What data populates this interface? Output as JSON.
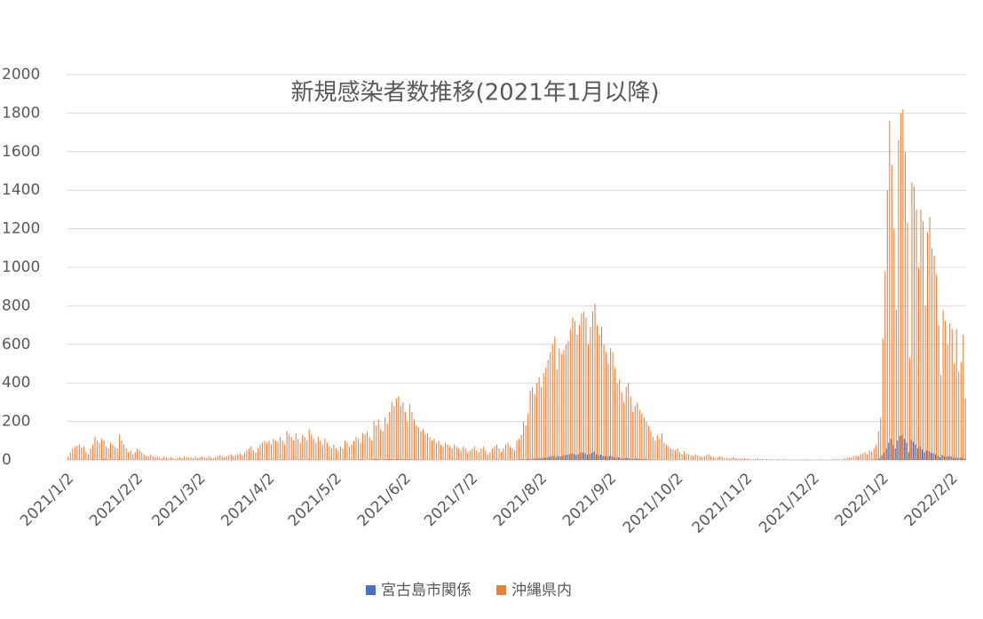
{
  "chart_data": {
    "type": "bar",
    "title": "新規感染者数推移(2021年1月以降)",
    "categories": [
      "2021/1/2",
      null,
      null,
      null,
      null,
      null,
      null,
      null,
      null,
      null,
      null,
      null,
      null,
      null,
      null,
      null,
      null,
      null,
      null,
      null,
      null,
      null,
      null,
      null,
      null,
      null,
      null,
      null,
      null,
      null,
      null,
      "2021/2/2",
      null,
      null,
      null,
      null,
      null,
      null,
      null,
      null,
      null,
      null,
      null,
      null,
      null,
      null,
      null,
      null,
      null,
      null,
      null,
      null,
      null,
      null,
      null,
      null,
      null,
      null,
      null,
      "2021/3/2",
      null,
      null,
      null,
      null,
      null,
      null,
      null,
      null,
      null,
      null,
      null,
      null,
      null,
      null,
      null,
      null,
      null,
      null,
      null,
      null,
      null,
      null,
      null,
      null,
      null,
      null,
      null,
      null,
      null,
      null,
      "2021/4/2",
      null,
      null,
      null,
      null,
      null,
      null,
      null,
      null,
      null,
      null,
      null,
      null,
      null,
      null,
      null,
      null,
      null,
      null,
      null,
      null,
      null,
      null,
      null,
      null,
      null,
      null,
      null,
      null,
      null,
      "2021/5/2",
      null,
      null,
      null,
      null,
      null,
      null,
      null,
      null,
      null,
      null,
      null,
      null,
      null,
      null,
      null,
      null,
      null,
      null,
      null,
      null,
      null,
      null,
      null,
      null,
      null,
      null,
      null,
      null,
      null,
      null,
      "2021/6/2",
      null,
      null,
      null,
      null,
      null,
      null,
      null,
      null,
      null,
      null,
      null,
      null,
      null,
      null,
      null,
      null,
      null,
      null,
      null,
      null,
      null,
      null,
      null,
      null,
      null,
      null,
      null,
      null,
      null,
      "2021/7/2",
      null,
      null,
      null,
      null,
      null,
      null,
      null,
      null,
      null,
      null,
      null,
      null,
      null,
      null,
      null,
      null,
      null,
      null,
      null,
      null,
      null,
      null,
      null,
      null,
      null,
      null,
      null,
      null,
      null,
      null,
      "2021/8/2",
      null,
      null,
      null,
      null,
      null,
      null,
      null,
      null,
      null,
      null,
      null,
      null,
      null,
      null,
      null,
      null,
      null,
      null,
      null,
      null,
      null,
      null,
      null,
      null,
      null,
      null,
      null,
      null,
      null,
      null,
      "2021/9/2",
      null,
      null,
      null,
      null,
      null,
      null,
      null,
      null,
      null,
      null,
      null,
      null,
      null,
      null,
      null,
      null,
      null,
      null,
      null,
      null,
      null,
      null,
      null,
      null,
      null,
      null,
      null,
      null,
      null,
      "2021/10/2",
      null,
      null,
      null,
      null,
      null,
      null,
      null,
      null,
      null,
      null,
      null,
      null,
      null,
      null,
      null,
      null,
      null,
      null,
      null,
      null,
      null,
      null,
      null,
      null,
      null,
      null,
      null,
      null,
      null,
      null,
      "2021/11/2",
      null,
      null,
      null,
      null,
      null,
      null,
      null,
      null,
      null,
      null,
      null,
      null,
      null,
      null,
      null,
      null,
      null,
      null,
      null,
      null,
      null,
      null,
      null,
      null,
      null,
      null,
      null,
      null,
      null,
      "2021/12/2",
      null,
      null,
      null,
      null,
      null,
      null,
      null,
      null,
      null,
      null,
      null,
      null,
      null,
      null,
      null,
      null,
      null,
      null,
      null,
      null,
      null,
      null,
      null,
      null,
      null,
      null,
      null,
      null,
      null,
      null,
      "2022/1/2",
      null,
      null,
      null,
      null,
      null,
      null,
      null,
      null,
      null,
      null,
      null,
      null,
      null,
      null,
      null,
      null,
      null,
      null,
      null,
      null,
      null,
      null,
      null,
      null,
      null,
      null,
      null,
      null,
      null,
      null,
      "2022/2/2",
      null,
      null,
      null,
      null,
      null,
      null
    ],
    "series": [
      {
        "name": "宮古島市関係",
        "color": "#4472c4",
        "values": [
          0,
          1,
          0,
          2,
          1,
          0,
          1,
          2,
          0,
          0,
          1,
          2,
          3,
          2,
          1,
          0,
          2,
          3,
          1,
          0,
          2,
          1,
          0,
          3,
          2,
          1,
          0,
          1,
          0,
          0,
          1,
          0,
          0,
          1,
          0,
          0,
          0,
          1,
          0,
          0,
          0,
          0,
          0,
          1,
          0,
          0,
          0,
          0,
          0,
          0,
          0,
          1,
          0,
          0,
          0,
          0,
          0,
          0,
          0,
          0,
          0,
          0,
          0,
          0,
          1,
          0,
          0,
          0,
          0,
          0,
          0,
          1,
          0,
          0,
          0,
          1,
          0,
          0,
          0,
          1,
          0,
          2,
          1,
          0,
          1,
          0,
          2,
          1,
          0,
          1,
          2,
          0,
          1,
          2,
          1,
          0,
          1,
          3,
          2,
          1,
          0,
          2,
          1,
          0,
          1,
          2,
          1,
          0,
          3,
          2,
          1,
          0,
          1,
          2,
          0,
          1,
          0,
          1,
          0,
          0,
          1,
          0,
          1,
          0,
          2,
          1,
          0,
          1,
          2,
          1,
          0,
          2,
          3,
          1,
          0,
          2,
          1,
          3,
          5,
          4,
          2,
          1,
          3,
          4,
          6,
          5,
          3,
          4,
          6,
          3,
          5,
          3,
          2,
          4,
          3,
          2,
          1,
          2,
          1,
          2,
          1,
          0,
          1,
          0,
          1,
          0,
          1,
          0,
          0,
          1,
          0,
          0,
          1,
          0,
          0,
          1,
          0,
          0,
          0,
          0,
          0,
          1,
          0,
          0,
          1,
          0,
          0,
          1,
          0,
          0,
          1,
          0,
          2,
          1,
          0,
          1,
          2,
          1,
          0,
          1,
          0,
          2,
          1,
          3,
          4,
          2,
          5,
          6,
          4,
          8,
          7,
          10,
          8,
          12,
          15,
          14,
          18,
          20,
          22,
          16,
          20,
          18,
          22,
          25,
          28,
          30,
          35,
          32,
          26,
          30,
          38,
          40,
          35,
          28,
          30,
          36,
          42,
          30,
          25,
          28,
          22,
          20,
          18,
          22,
          20,
          15,
          12,
          14,
          10,
          8,
          12,
          10,
          8,
          6,
          7,
          8,
          6,
          5,
          4,
          5,
          3,
          2,
          2,
          1,
          2,
          1,
          2,
          1,
          0,
          1,
          0,
          0,
          0,
          1,
          0,
          0,
          0,
          1,
          0,
          0,
          0,
          0,
          0,
          0,
          0,
          0,
          0,
          0,
          0,
          0,
          0,
          0,
          0,
          0,
          0,
          0,
          0,
          0,
          0,
          0,
          0,
          0,
          0,
          0,
          0,
          0,
          0,
          0,
          0,
          0,
          0,
          0,
          0,
          0,
          0,
          0,
          0,
          0,
          0,
          0,
          0,
          0,
          0,
          0,
          0,
          0,
          0,
          0,
          0,
          0,
          0,
          0,
          0,
          0,
          0,
          0,
          0,
          0,
          0,
          0,
          0,
          0,
          0,
          0,
          0,
          0,
          0,
          0,
          0,
          0,
          0,
          0,
          0,
          0,
          0,
          0,
          1,
          0,
          1,
          0,
          1,
          2,
          3,
          5,
          10,
          25,
          40,
          60,
          90,
          110,
          80,
          60,
          100,
          125,
          130,
          110,
          90,
          40,
          105,
          95,
          80,
          60,
          70,
          55,
          40,
          50,
          45,
          38,
          35,
          30,
          22,
          15,
          25,
          20,
          18,
          20,
          18,
          12,
          15,
          10,
          12,
          14,
          8
        ]
      },
      {
        "name": "沖縄県内",
        "color": "#ed7d31",
        "values": [
          20,
          40,
          60,
          70,
          75,
          80,
          65,
          70,
          40,
          30,
          60,
          80,
          120,
          100,
          90,
          110,
          100,
          70,
          60,
          90,
          80,
          70,
          60,
          130,
          100,
          80,
          60,
          40,
          50,
          30,
          40,
          60,
          50,
          40,
          30,
          20,
          20,
          30,
          20,
          15,
          20,
          15,
          10,
          20,
          15,
          10,
          15,
          10,
          5,
          10,
          15,
          10,
          20,
          15,
          10,
          15,
          10,
          20,
          10,
          15,
          20,
          15,
          10,
          20,
          15,
          10,
          15,
          20,
          25,
          20,
          15,
          20,
          25,
          30,
          20,
          25,
          30,
          35,
          25,
          40,
          50,
          60,
          70,
          50,
          40,
          60,
          80,
          90,
          100,
          90,
          100,
          80,
          110,
          100,
          90,
          120,
          100,
          80,
          150,
          130,
          120,
          100,
          140,
          110,
          90,
          130,
          120,
          100,
          160,
          130,
          110,
          90,
          120,
          100,
          80,
          110,
          90,
          70,
          60,
          80,
          60,
          50,
          70,
          60,
          100,
          90,
          70,
          80,
          100,
          120,
          110,
          90,
          140,
          130,
          150,
          120,
          100,
          200,
          180,
          210,
          160,
          150,
          220,
          190,
          250,
          300,
          280,
          320,
          330,
          280,
          300,
          250,
          200,
          290,
          250,
          210,
          180,
          170,
          150,
          160,
          130,
          140,
          120,
          100,
          110,
          90,
          100,
          80,
          70,
          90,
          80,
          70,
          60,
          80,
          70,
          60,
          50,
          70,
          60,
          40,
          50,
          60,
          70,
          50,
          40,
          60,
          70,
          50,
          30,
          40,
          60,
          70,
          80,
          60,
          40,
          60,
          80,
          90,
          70,
          60,
          50,
          100,
          110,
          130,
          200,
          180,
          240,
          360,
          380,
          340,
          400,
          430,
          380,
          450,
          480,
          520,
          560,
          600,
          640,
          470,
          580,
          550,
          570,
          600,
          620,
          680,
          740,
          720,
          650,
          700,
          760,
          770,
          740,
          600,
          690,
          770,
          810,
          700,
          650,
          690,
          600,
          560,
          500,
          580,
          560,
          480,
          400,
          420,
          350,
          300,
          380,
          400,
          330,
          250,
          280,
          300,
          260,
          240,
          220,
          200,
          180,
          150,
          120,
          100,
          130,
          110,
          140,
          90,
          80,
          70,
          60,
          55,
          50,
          60,
          40,
          30,
          45,
          35,
          30,
          25,
          20,
          30,
          25,
          20,
          15,
          20,
          25,
          30,
          20,
          15,
          10,
          15,
          20,
          15,
          10,
          12,
          8,
          10,
          15,
          10,
          8,
          6,
          8,
          10,
          8,
          6,
          5,
          4,
          6,
          8,
          5,
          4,
          3,
          5,
          4,
          3,
          2,
          3,
          4,
          2,
          3,
          4,
          2,
          1,
          3,
          2,
          1,
          2,
          3,
          2,
          4,
          3,
          2,
          2,
          3,
          1,
          2,
          4,
          3,
          2,
          1,
          3,
          2,
          4,
          5,
          3,
          2,
          6,
          8,
          10,
          12,
          15,
          20,
          25,
          22,
          30,
          35,
          40,
          30,
          50,
          45,
          60,
          80,
          150,
          220,
          630,
          980,
          1400,
          1760,
          1530,
          1200,
          780,
          1660,
          1800,
          1820,
          1600,
          1230,
          530,
          1440,
          1420,
          1300,
          1000,
          1300,
          1240,
          800,
          1180,
          1260,
          1100,
          1060,
          960,
          700,
          440,
          780,
          720,
          600,
          710,
          680,
          500,
          680,
          460,
          510,
          650,
          320
        ]
      }
    ],
    "ylim": [
      0,
      2000
    ],
    "yticks": [
      0,
      200,
      400,
      600,
      800,
      1000,
      1200,
      1400,
      1600,
      1800,
      2000
    ],
    "grid": true,
    "legend": "bottom"
  }
}
